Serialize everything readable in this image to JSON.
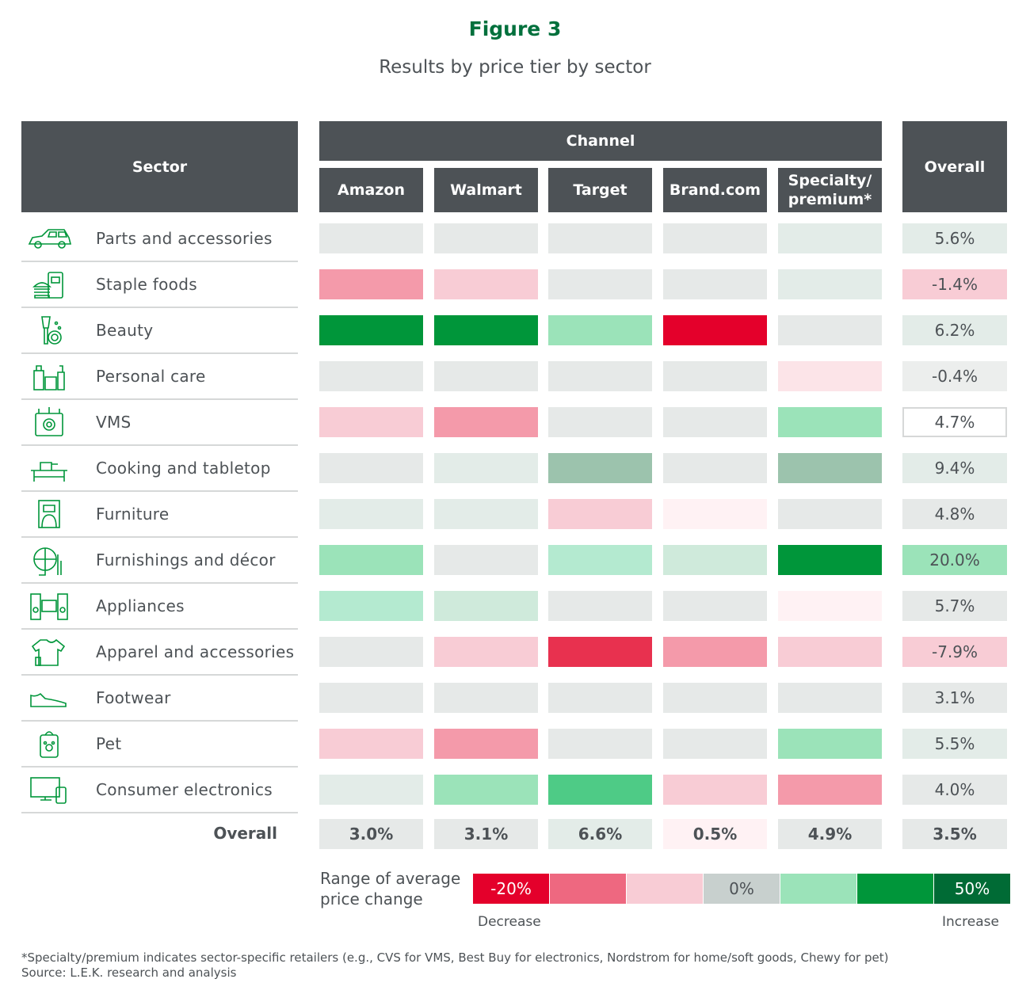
{
  "title": "Figure 3",
  "subtitle": "Results by price tier by sector",
  "headers": {
    "sector": "Sector",
    "channel": "Channel",
    "overall": "Overall",
    "channels": [
      "Amazon",
      "Walmart",
      "Target",
      "Brand.com",
      "Specialty/ premium*"
    ]
  },
  "chart_data": {
    "type": "heatmap",
    "title": "Results by price tier by sector",
    "columns": [
      "Amazon",
      "Walmart",
      "Target",
      "Brand.com",
      "Specialty/ premium*",
      "Overall"
    ],
    "rows": [
      {
        "sector": "Parts and accessories",
        "icon": "car-icon",
        "colors": [
          "#e6e9e8",
          "#e6e9e8",
          "#e6e9e8",
          "#e6e9e8",
          "#e3ece8"
        ],
        "overall": "5.6%",
        "overall_color": "#e3ece8"
      },
      {
        "sector": "Staple foods",
        "icon": "food-icon",
        "colors": [
          "#f49aaa",
          "#f8ccd5",
          "#e6e9e8",
          "#e6e9e8",
          "#e3ece8"
        ],
        "overall": "-1.4%",
        "overall_color": "#f8ccd5"
      },
      {
        "sector": "Beauty",
        "icon": "makeup-brush-icon",
        "colors": [
          "#00963a",
          "#00963a",
          "#9be3b9",
          "#e4002b",
          "#e6e9e8"
        ],
        "overall": "6.2%",
        "overall_color": "#e3ece8"
      },
      {
        "sector": "Personal care",
        "icon": "toiletries-icon",
        "colors": [
          "#e6e9e8",
          "#e6e9e8",
          "#e6e9e8",
          "#e6e9e8",
          "#fce4e8"
        ],
        "overall": "-0.4%",
        "overall_color": "#eceeed"
      },
      {
        "sector": "VMS",
        "icon": "vitamin-icon",
        "colors": [
          "#f8ccd5",
          "#f49aaa",
          "#e6e9e8",
          "#e6e9e8",
          "#9be3b9"
        ],
        "overall": "4.7%",
        "overall_color": "#ffffff"
      },
      {
        "sector": "Cooking and tabletop",
        "icon": "cooking-icon",
        "colors": [
          "#e6e9e8",
          "#e3ece8",
          "#9cc3ad",
          "#e6e9e8",
          "#9cc3ad"
        ],
        "overall": "9.4%",
        "overall_color": "#e3ece8"
      },
      {
        "sector": "Furniture",
        "icon": "furniture-icon",
        "colors": [
          "#e3ece8",
          "#e3ece8",
          "#f8ccd5",
          "#fff2f4",
          "#e6e9e8"
        ],
        "overall": "4.8%",
        "overall_color": "#e6e9e8"
      },
      {
        "sector": "Furnishings and décor",
        "icon": "globe-decor-icon",
        "colors": [
          "#9be3b9",
          "#e6e9e8",
          "#b4ead0",
          "#cfeadb",
          "#00963a"
        ],
        "overall": "20.0%",
        "overall_color": "#9be3b9"
      },
      {
        "sector": "Appliances",
        "icon": "appliances-icon",
        "colors": [
          "#b4ead0",
          "#cfeadb",
          "#e6e9e8",
          "#e6e9e8",
          "#fff2f4"
        ],
        "overall": "5.7%",
        "overall_color": "#e6e9e8"
      },
      {
        "sector": "Apparel and accessories",
        "icon": "shirt-icon",
        "colors": [
          "#e6e9e8",
          "#f8ccd5",
          "#e8314f",
          "#f49aaa",
          "#f8ccd5"
        ],
        "overall": "-7.9%",
        "overall_color": "#f8ccd5"
      },
      {
        "sector": "Footwear",
        "icon": "shoe-icon",
        "colors": [
          "#e6e9e8",
          "#e6e9e8",
          "#e6e9e8",
          "#e6e9e8",
          "#e6e9e8"
        ],
        "overall": "3.1%",
        "overall_color": "#e6e9e8"
      },
      {
        "sector": "Pet",
        "icon": "pet-bag-icon",
        "colors": [
          "#f8ccd5",
          "#f49aaa",
          "#e6e9e8",
          "#e6e9e8",
          "#9be3b9"
        ],
        "overall": "5.5%",
        "overall_color": "#e3ece8"
      },
      {
        "sector": "Consumer electronics",
        "icon": "monitor-icon",
        "colors": [
          "#e3ece8",
          "#9be3b9",
          "#4ecb86",
          "#f8ccd5",
          "#f49aaa"
        ],
        "overall": "4.0%",
        "overall_color": "#e6e9e8"
      }
    ],
    "overall_row": {
      "label": "Overall",
      "values": [
        "3.0%",
        "3.1%",
        "6.6%",
        "0.5%",
        "4.9%",
        "3.5%"
      ],
      "colors": [
        "#e6e9e8",
        "#e6e9e8",
        "#e3ece8",
        "#fff2f4",
        "#e6e9e8",
        "#e6e9e8"
      ]
    },
    "legend": {
      "title": "Range of average price change",
      "colors": [
        "#e4002b",
        "#ee6880",
        "#f8ccd5",
        "#c8d0ce",
        "#9be3b9",
        "#00963a",
        "#006b35"
      ],
      "labels": [
        "-20%",
        "",
        "",
        "0%",
        "",
        "",
        "50%"
      ],
      "low": "Decrease",
      "high": "Increase"
    }
  },
  "footnote": "*Specialty/premium indicates sector-specific retailers (e.g., CVS for VMS, Best Buy for electronics, Nordstrom for home/soft goods, Chewy for pet)",
  "source": "Source: L.E.K. research and analysis",
  "accent": "#00963a",
  "header_color": "#4d5256"
}
